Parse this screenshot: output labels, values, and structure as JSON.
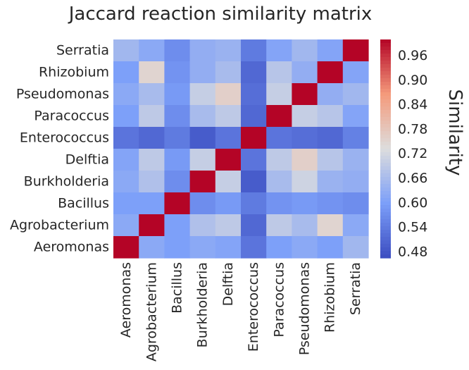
{
  "chart_data": {
    "type": "heatmap",
    "title": "Jaccard reaction similarity matrix",
    "rows": [
      "Serratia",
      "Rhizobium",
      "Pseudomonas",
      "Paracoccus",
      "Enterococcus",
      "Delftia",
      "Burkholderia",
      "Bacillus",
      "Agrobacterium",
      "Aeromonas"
    ],
    "columns": [
      "Aeromonas",
      "Agrobacterium",
      "Bacillus",
      "Burkholderia",
      "Delftia",
      "Enterococcus",
      "Paracoccus",
      "Pseudomonas",
      "Rhizobium",
      "Serratia"
    ],
    "values": [
      [
        0.65,
        0.62,
        0.57,
        0.63,
        0.64,
        0.54,
        0.61,
        0.65,
        0.61,
        1.0
      ],
      [
        0.6,
        0.75,
        0.58,
        0.63,
        0.66,
        0.51,
        0.68,
        0.63,
        1.0,
        0.61
      ],
      [
        0.62,
        0.66,
        0.59,
        0.7,
        0.76,
        0.52,
        0.7,
        1.0,
        0.63,
        0.65
      ],
      [
        0.6,
        0.69,
        0.57,
        0.66,
        0.69,
        0.51,
        1.0,
        0.7,
        0.68,
        0.61
      ],
      [
        0.53,
        0.51,
        0.54,
        0.49,
        0.53,
        1.0,
        0.53,
        0.52,
        0.51,
        0.55
      ],
      [
        0.61,
        0.69,
        0.59,
        0.7,
        1.0,
        0.53,
        0.69,
        0.76,
        0.68,
        0.64
      ],
      [
        0.62,
        0.67,
        0.57,
        1.0,
        0.7,
        0.49,
        0.66,
        0.71,
        0.64,
        0.63
      ],
      [
        0.6,
        0.6,
        1.0,
        0.57,
        0.59,
        0.54,
        0.58,
        0.59,
        0.58,
        0.57
      ],
      [
        0.62,
        1.0,
        0.6,
        0.67,
        0.69,
        0.51,
        0.69,
        0.66,
        0.75,
        0.62
      ],
      [
        1.0,
        0.62,
        0.6,
        0.62,
        0.61,
        0.53,
        0.6,
        0.62,
        0.6,
        0.65
      ]
    ],
    "colorbar": {
      "label": "Similarity",
      "range": [
        0.465,
        1.0
      ],
      "ticks": [
        "0.48",
        "0.54",
        "0.60",
        "0.66",
        "0.72",
        "0.78",
        "0.84",
        "0.90",
        "0.96"
      ],
      "colormap": "coolwarm"
    }
  }
}
